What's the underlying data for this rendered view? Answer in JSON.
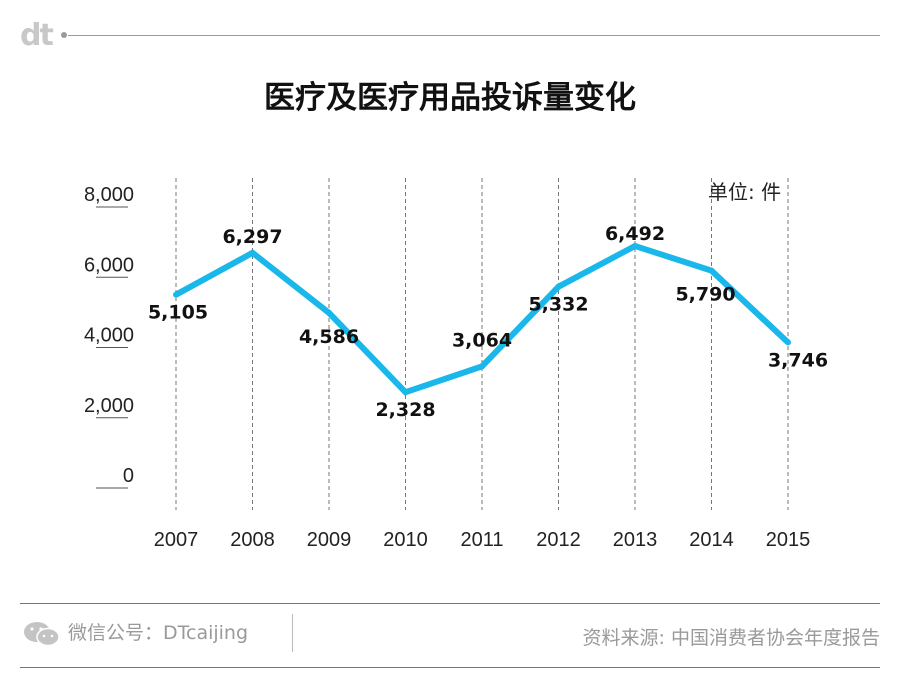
{
  "brand": {
    "logo_text": "dt"
  },
  "chart_data": {
    "type": "line",
    "title": "医疗及医疗用品投诉量变化",
    "unit_label": "单位: 件",
    "categories": [
      "2007",
      "2008",
      "2009",
      "2010",
      "2011",
      "2012",
      "2013",
      "2014",
      "2015"
    ],
    "values": [
      5105,
      6297,
      4586,
      2328,
      3064,
      5332,
      6492,
      5790,
      3746
    ],
    "data_labels": [
      "5,105",
      "6,297",
      "4,586",
      "2,328",
      "3,064",
      "5,332",
      "6,492",
      "5,790",
      "3,746"
    ],
    "yticks": [
      0,
      2000,
      4000,
      6000,
      8000
    ],
    "ytick_labels": [
      "0",
      "2,000",
      "4,000",
      "6,000",
      "8,000"
    ],
    "ylim": [
      0,
      8000
    ],
    "line_color": "#1ab7ea",
    "grid": "vertical-dashed"
  },
  "footer": {
    "wechat_label": "微信公号：DTcaijing",
    "source": "资料来源: 中国消费者协会年度报告"
  }
}
